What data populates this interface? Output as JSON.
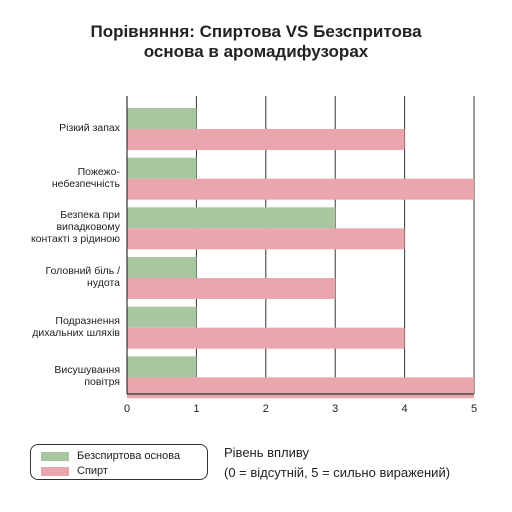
{
  "title_lines": [
    "Порівняння: Спиртова VS Безспритова",
    "основа в аромадифузорах"
  ],
  "legend": {
    "items": [
      {
        "label": "Безспиртова основа",
        "color": "#a8c7a0"
      },
      {
        "label": "Спирт",
        "color": "#e9a7ad"
      }
    ]
  },
  "impact_title_lines": [
    "Рівень впливу",
    "(0 = відсутній, 5 = сильно виражений)"
  ],
  "chart_data": {
    "type": "bar",
    "orientation": "horizontal",
    "title": "Порівняння: Спиртова VS Безспритова основа в аромадифузорах",
    "xlabel": "Рівень впливу (0 = відсутній, 5 = сильно виражений)",
    "ylabel": "",
    "xlim": [
      0,
      5
    ],
    "xticks": [
      "0",
      "1",
      "2",
      "3",
      "4",
      "5"
    ],
    "grid": "vertical",
    "legend_position": "bottom-left",
    "categories": [
      [
        "Різкий запах"
      ],
      [
        "Пожежо-",
        "небезпечність"
      ],
      [
        "Безпека при",
        "випадковому",
        "контакті з рідиною"
      ],
      [
        "Головний біль /",
        "нудота"
      ],
      [
        "Подразнення",
        "дихальних шляхів"
      ],
      [
        "Висушування",
        "повітря"
      ]
    ],
    "series": [
      {
        "name": "Безспиртова основа",
        "color": "#a8c7a0",
        "values": [
          1,
          1,
          3,
          1,
          1,
          1
        ]
      },
      {
        "name": "Спирт",
        "color": "#e9a7ad",
        "values": [
          4,
          5,
          4,
          3,
          4,
          5
        ]
      }
    ]
  }
}
